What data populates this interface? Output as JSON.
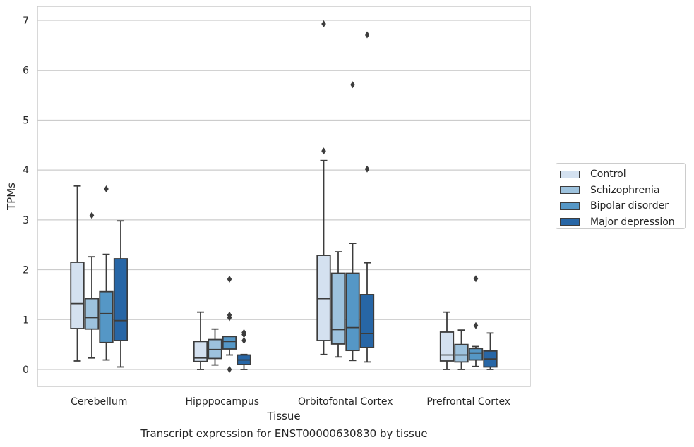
{
  "caption": "Transcript expression for ENST00000630830 by tissue",
  "colors": {
    "Control": "#d4e1f0",
    "Schizophrenia": "#9dc2dd",
    "Bipolar disorder": "#5597c6",
    "Major depression": "#2766a6",
    "line": "#3c3c3c",
    "grid": "#cccccc"
  },
  "chart_data": {
    "type": "box",
    "xlabel": "Tissue",
    "ylabel": "TPMs",
    "ylim": [
      -0.33,
      7.3
    ],
    "yticks": [
      0,
      1,
      2,
      3,
      4,
      5,
      6,
      7
    ],
    "grid": "horizontal",
    "legend_position": "right",
    "categories": [
      "Cerebellum",
      "Hipppocampus",
      "Orbitofontal Cortex",
      "Prefrontal Cortex"
    ],
    "series": [
      {
        "name": "Control",
        "boxes": [
          {
            "min": 0.17,
            "q1": 0.82,
            "median": 1.32,
            "q3": 2.15,
            "max": 3.68,
            "outliers": []
          },
          {
            "min": 0.0,
            "q1": 0.16,
            "median": 0.23,
            "q3": 0.56,
            "max": 1.15,
            "outliers": []
          },
          {
            "min": 0.3,
            "q1": 0.58,
            "median": 1.42,
            "q3": 2.29,
            "max": 4.19,
            "outliers": [
              4.38,
              6.93
            ]
          },
          {
            "min": 0.0,
            "q1": 0.17,
            "median": 0.29,
            "q3": 0.75,
            "max": 1.15,
            "outliers": []
          }
        ]
      },
      {
        "name": "Schizophrenia",
        "boxes": [
          {
            "min": 0.23,
            "q1": 0.81,
            "median": 1.04,
            "q3": 1.42,
            "max": 2.26,
            "outliers": [
              3.09
            ]
          },
          {
            "min": 0.09,
            "q1": 0.22,
            "median": 0.4,
            "q3": 0.6,
            "max": 0.81,
            "outliers": []
          },
          {
            "min": 0.25,
            "q1": 0.51,
            "median": 0.8,
            "q3": 1.93,
            "max": 2.36,
            "outliers": []
          },
          {
            "min": 0.0,
            "q1": 0.15,
            "median": 0.29,
            "q3": 0.5,
            "max": 0.79,
            "outliers": []
          }
        ]
      },
      {
        "name": "Bipolar disorder",
        "boxes": [
          {
            "min": 0.19,
            "q1": 0.54,
            "median": 1.12,
            "q3": 1.56,
            "max": 2.31,
            "outliers": [
              3.62
            ]
          },
          {
            "min": 0.29,
            "q1": 0.41,
            "median": 0.56,
            "q3": 0.66,
            "max": 0.66,
            "outliers": [
              1.04,
              1.09,
              1.81,
              0.0
            ]
          },
          {
            "min": 0.18,
            "q1": 0.38,
            "median": 0.84,
            "q3": 1.93,
            "max": 2.53,
            "outliers": [
              5.71
            ]
          },
          {
            "min": 0.06,
            "q1": 0.19,
            "median": 0.33,
            "q3": 0.42,
            "max": 0.46,
            "outliers": [
              0.88,
              1.82
            ]
          }
        ]
      },
      {
        "name": "Major depression",
        "boxes": [
          {
            "min": 0.05,
            "q1": 0.58,
            "median": 0.98,
            "q3": 2.22,
            "max": 2.98,
            "outliers": []
          },
          {
            "min": 0.0,
            "q1": 0.1,
            "median": 0.19,
            "q3": 0.29,
            "max": 0.3,
            "outliers": [
              0.58,
              0.7,
              0.74
            ]
          },
          {
            "min": 0.15,
            "q1": 0.44,
            "median": 0.72,
            "q3": 1.5,
            "max": 2.14,
            "outliers": [
              4.02,
              6.71
            ]
          },
          {
            "min": 0.0,
            "q1": 0.05,
            "median": 0.21,
            "q3": 0.37,
            "max": 0.73,
            "outliers": []
          }
        ]
      }
    ]
  }
}
